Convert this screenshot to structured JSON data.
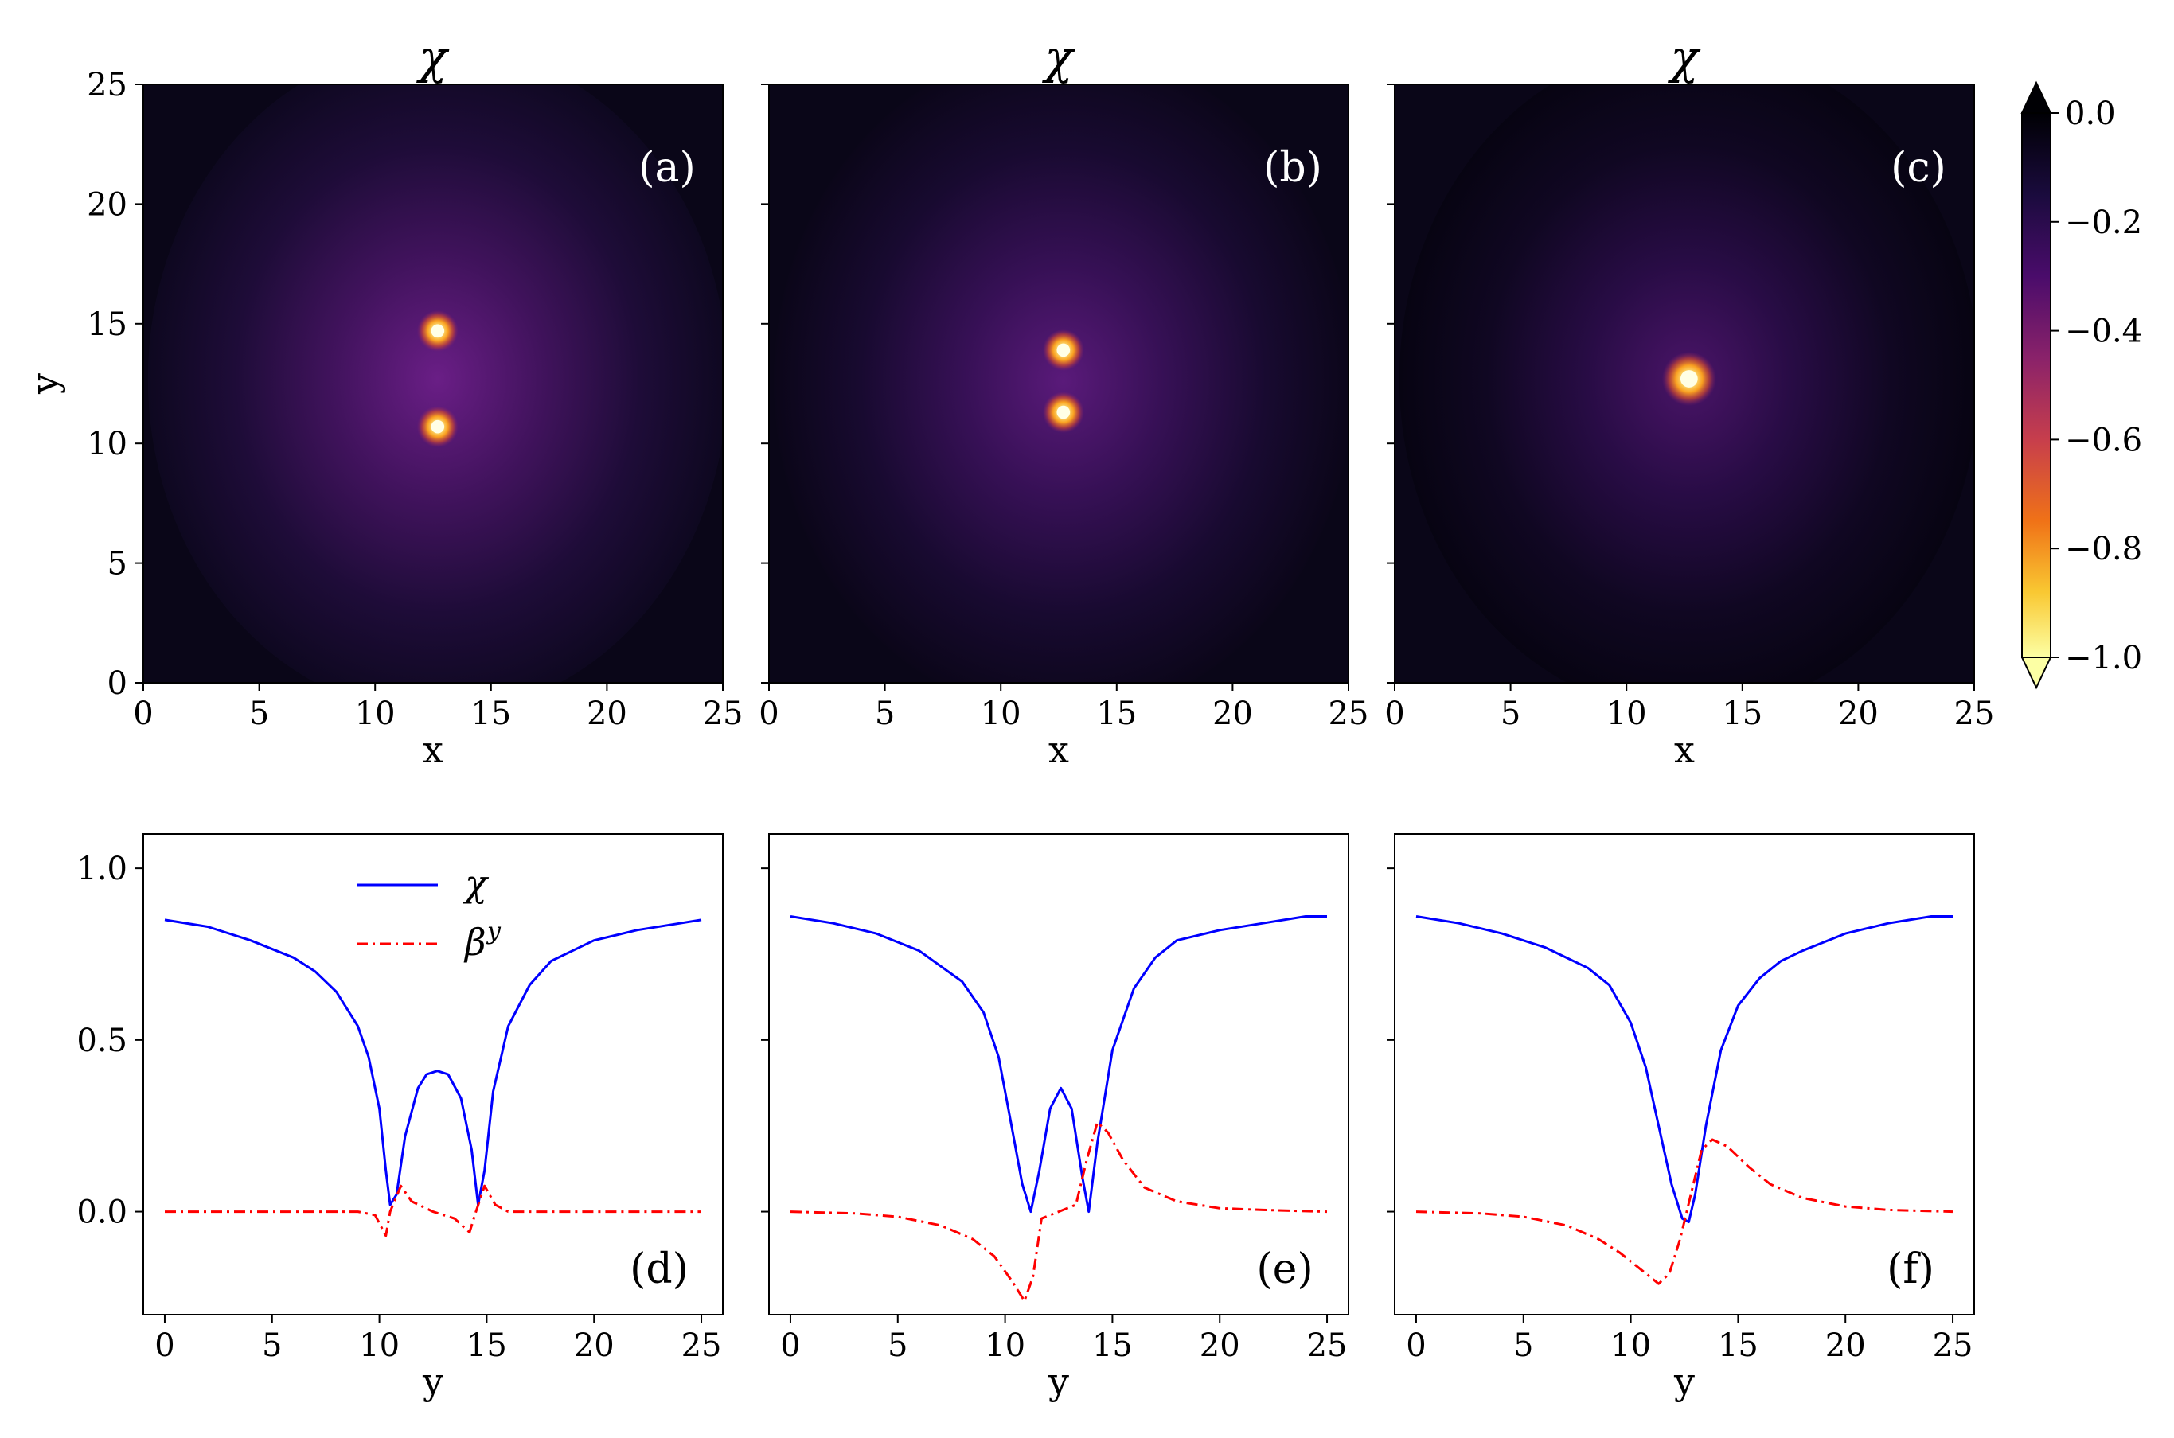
{
  "chart_data": [
    {
      "type": "heatmap",
      "panel": "(a)",
      "title": "χ",
      "xlabel": "x",
      "ylabel": "y",
      "xlim": [
        0,
        25
      ],
      "ylim": [
        0,
        25
      ],
      "xticks": [
        "0",
        "5",
        "10",
        "15",
        "20",
        "25"
      ],
      "yticks": [
        "0",
        "5",
        "10",
        "15",
        "20",
        "25"
      ],
      "peaks": [
        {
          "x": 12.7,
          "y": 14.7,
          "value": -1.0
        },
        {
          "x": 12.7,
          "y": 10.7,
          "value": -1.0
        }
      ]
    },
    {
      "type": "heatmap",
      "panel": "(b)",
      "title": "χ",
      "xlabel": "x",
      "xlim": [
        0,
        25
      ],
      "ylim": [
        0,
        25
      ],
      "xticks": [
        "0",
        "5",
        "10",
        "15",
        "20",
        "25"
      ],
      "peaks": [
        {
          "x": 12.7,
          "y": 13.9,
          "value": -1.0
        },
        {
          "x": 12.7,
          "y": 11.3,
          "value": -1.0
        }
      ]
    },
    {
      "type": "heatmap",
      "panel": "(c)",
      "title": "χ",
      "xlabel": "x",
      "xlim": [
        0,
        25
      ],
      "ylim": [
        0,
        25
      ],
      "xticks": [
        "0",
        "5",
        "10",
        "15",
        "20",
        "25"
      ],
      "peaks": [
        {
          "x": 12.7,
          "y": 12.7,
          "value": -1.0
        }
      ]
    },
    {
      "type": "line",
      "panel": "(d)",
      "xlabel": "y",
      "xlim": [
        -1,
        26
      ],
      "ylim": [
        -0.3,
        1.1
      ],
      "xticks": [
        "0",
        "5",
        "10",
        "15",
        "20",
        "25"
      ],
      "yticks": [
        "0.0",
        "0.5",
        "1.0"
      ],
      "legend": {
        "placement": "upper-center"
      },
      "series": [
        {
          "name": "χ",
          "color": "#0000ff",
          "style": "solid",
          "points": [
            [
              0,
              0.85
            ],
            [
              2,
              0.83
            ],
            [
              4,
              0.79
            ],
            [
              6,
              0.74
            ],
            [
              7,
              0.7
            ],
            [
              8,
              0.64
            ],
            [
              9,
              0.54
            ],
            [
              9.5,
              0.45
            ],
            [
              10,
              0.3
            ],
            [
              10.3,
              0.12
            ],
            [
              10.5,
              0.02
            ],
            [
              10.8,
              0.05
            ],
            [
              11.2,
              0.22
            ],
            [
              11.8,
              0.36
            ],
            [
              12.2,
              0.4
            ],
            [
              12.7,
              0.41
            ],
            [
              13.2,
              0.4
            ],
            [
              13.8,
              0.33
            ],
            [
              14.3,
              0.18
            ],
            [
              14.6,
              0.02
            ],
            [
              14.9,
              0.12
            ],
            [
              15.3,
              0.35
            ],
            [
              16,
              0.54
            ],
            [
              17,
              0.66
            ],
            [
              18,
              0.73
            ],
            [
              20,
              0.79
            ],
            [
              22,
              0.82
            ],
            [
              24,
              0.84
            ],
            [
              25,
              0.85
            ]
          ]
        },
        {
          "name": "β^y",
          "color": "#ff0000",
          "style": "dashdot",
          "points": [
            [
              0,
              0.0
            ],
            [
              9,
              0.0
            ],
            [
              9.8,
              -0.01
            ],
            [
              10.3,
              -0.07
            ],
            [
              10.5,
              0.0
            ],
            [
              11.0,
              0.075
            ],
            [
              11.5,
              0.03
            ],
            [
              12.5,
              0.0
            ],
            [
              13.5,
              -0.02
            ],
            [
              14.2,
              -0.06
            ],
            [
              14.5,
              0.0
            ],
            [
              14.9,
              0.075
            ],
            [
              15.4,
              0.02
            ],
            [
              16,
              0.0
            ],
            [
              25,
              0.0
            ]
          ]
        }
      ]
    },
    {
      "type": "line",
      "panel": "(e)",
      "xlabel": "y",
      "xlim": [
        -1,
        26
      ],
      "ylim": [
        -0.3,
        1.1
      ],
      "xticks": [
        "0",
        "5",
        "10",
        "15",
        "20",
        "25"
      ],
      "series": [
        {
          "name": "χ",
          "color": "#0000ff",
          "style": "solid",
          "points": [
            [
              0,
              0.86
            ],
            [
              2,
              0.84
            ],
            [
              4,
              0.81
            ],
            [
              6,
              0.76
            ],
            [
              8,
              0.67
            ],
            [
              9,
              0.58
            ],
            [
              9.7,
              0.45
            ],
            [
              10.3,
              0.25
            ],
            [
              10.8,
              0.08
            ],
            [
              11.2,
              0.0
            ],
            [
              11.6,
              0.12
            ],
            [
              12.1,
              0.3
            ],
            [
              12.6,
              0.36
            ],
            [
              13.1,
              0.3
            ],
            [
              13.6,
              0.1
            ],
            [
              13.9,
              0.0
            ],
            [
              14.3,
              0.2
            ],
            [
              15,
              0.47
            ],
            [
              16,
              0.65
            ],
            [
              17,
              0.74
            ],
            [
              18,
              0.79
            ],
            [
              20,
              0.82
            ],
            [
              22,
              0.84
            ],
            [
              24,
              0.86
            ],
            [
              25,
              0.86
            ]
          ]
        },
        {
          "name": "β^y",
          "color": "#ff0000",
          "style": "dashdot",
          "points": [
            [
              0,
              0.0
            ],
            [
              3,
              -0.005
            ],
            [
              5,
              -0.015
            ],
            [
              7,
              -0.04
            ],
            [
              8.5,
              -0.08
            ],
            [
              9.5,
              -0.13
            ],
            [
              10.3,
              -0.2
            ],
            [
              10.9,
              -0.26
            ],
            [
              11.3,
              -0.19
            ],
            [
              11.7,
              -0.02
            ],
            [
              12.5,
              0.0
            ],
            [
              13.3,
              0.02
            ],
            [
              13.8,
              0.15
            ],
            [
              14.3,
              0.26
            ],
            [
              14.8,
              0.23
            ],
            [
              15.5,
              0.15
            ],
            [
              16.5,
              0.07
            ],
            [
              18,
              0.03
            ],
            [
              20,
              0.01
            ],
            [
              22,
              0.005
            ],
            [
              25,
              0.0
            ]
          ]
        }
      ]
    },
    {
      "type": "line",
      "panel": "(f)",
      "xlabel": "y",
      "xlim": [
        -1,
        26
      ],
      "ylim": [
        -0.3,
        1.1
      ],
      "xticks": [
        "0",
        "5",
        "10",
        "15",
        "20",
        "25"
      ],
      "series": [
        {
          "name": "χ",
          "color": "#0000ff",
          "style": "solid",
          "points": [
            [
              0,
              0.86
            ],
            [
              2,
              0.84
            ],
            [
              4,
              0.81
            ],
            [
              6,
              0.77
            ],
            [
              8,
              0.71
            ],
            [
              9,
              0.66
            ],
            [
              10,
              0.55
            ],
            [
              10.7,
              0.42
            ],
            [
              11.3,
              0.25
            ],
            [
              11.9,
              0.08
            ],
            [
              12.4,
              -0.02
            ],
            [
              12.7,
              -0.03
            ],
            [
              13.0,
              0.05
            ],
            [
              13.5,
              0.25
            ],
            [
              14.2,
              0.47
            ],
            [
              15,
              0.6
            ],
            [
              16,
              0.68
            ],
            [
              17,
              0.73
            ],
            [
              18,
              0.76
            ],
            [
              20,
              0.81
            ],
            [
              22,
              0.84
            ],
            [
              24,
              0.86
            ],
            [
              25,
              0.86
            ]
          ]
        },
        {
          "name": "β^y",
          "color": "#ff0000",
          "style": "dashdot",
          "points": [
            [
              0,
              0.0
            ],
            [
              3,
              -0.005
            ],
            [
              5,
              -0.015
            ],
            [
              7,
              -0.04
            ],
            [
              8.5,
              -0.08
            ],
            [
              9.5,
              -0.12
            ],
            [
              10.5,
              -0.17
            ],
            [
              11.3,
              -0.21
            ],
            [
              11.8,
              -0.18
            ],
            [
              12.3,
              -0.08
            ],
            [
              12.8,
              0.05
            ],
            [
              13.3,
              0.18
            ],
            [
              13.8,
              0.21
            ],
            [
              14.5,
              0.19
            ],
            [
              15.5,
              0.13
            ],
            [
              16.5,
              0.08
            ],
            [
              18,
              0.04
            ],
            [
              20,
              0.015
            ],
            [
              22,
              0.005
            ],
            [
              25,
              0.0
            ]
          ]
        }
      ]
    }
  ],
  "colorbar": {
    "cmap": "inferno-like",
    "ticks": [
      "0.0",
      "−0.2",
      "−0.4",
      "−0.6",
      "−0.8",
      "−1.0"
    ],
    "values": [
      0.0,
      -0.2,
      -0.4,
      -0.6,
      -0.8,
      -1.0
    ],
    "colors": [
      "#000004",
      "#2b0a52",
      "#72197e",
      "#c03e5e",
      "#f2701c",
      "#fbc934",
      "#fcffa4"
    ],
    "extend": "both"
  },
  "labels": {
    "a": "(a)",
    "b": "(b)",
    "c": "(c)",
    "d": "(d)",
    "e": "(e)",
    "f": "(f)",
    "title": "χ",
    "xlabel_x": "x",
    "xlabel_y": "y",
    "ylabel_y": "y",
    "legend_chi": "χ",
    "legend_beta_base": "β",
    "legend_beta_sup": "y"
  }
}
